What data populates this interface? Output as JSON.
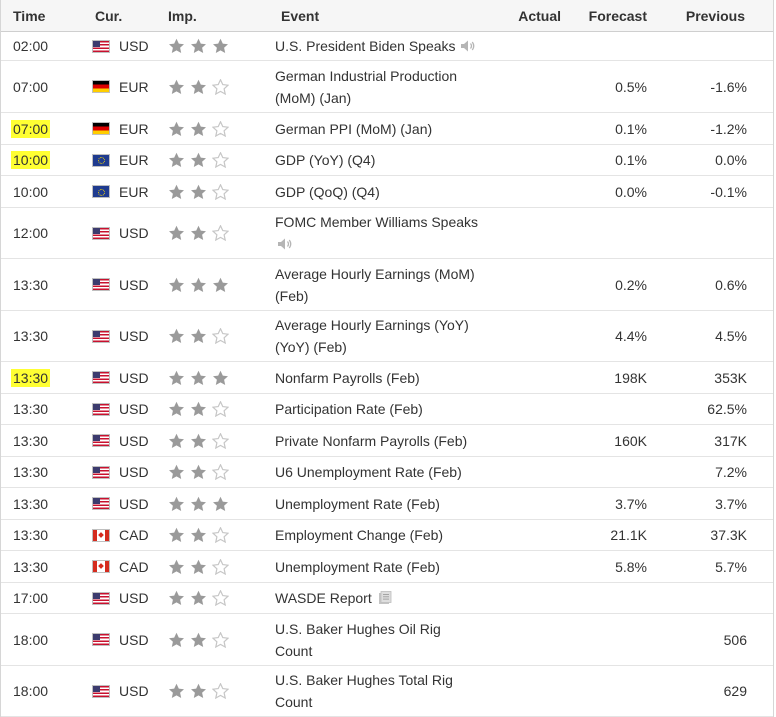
{
  "header": {
    "time": "Time",
    "currency": "Cur.",
    "importance": "Imp.",
    "event": "Event",
    "actual": "Actual",
    "forecast": "Forecast",
    "previous": "Previous"
  },
  "rows": [
    {
      "time": "02:00",
      "flag": "us",
      "currency": "USD",
      "stars": 3,
      "event_lines": [
        "U.S. President Biden Speaks"
      ],
      "icon": "sound",
      "actual": "",
      "forecast": "",
      "previous": "",
      "highlight": false
    },
    {
      "time": "07:00",
      "flag": "de",
      "currency": "EUR",
      "stars": 2,
      "event_lines": [
        "German Industrial Production",
        "(MoM) (Jan)"
      ],
      "icon": "",
      "actual": "",
      "forecast": "0.5%",
      "previous": "-1.6%",
      "highlight": false
    },
    {
      "time": "07:00",
      "flag": "de",
      "currency": "EUR",
      "stars": 2,
      "event_lines": [
        "German PPI (MoM) (Jan)"
      ],
      "icon": "",
      "actual": "",
      "forecast": "0.1%",
      "previous": "-1.2%",
      "highlight": true
    },
    {
      "time": "10:00",
      "flag": "eu",
      "currency": "EUR",
      "stars": 2,
      "event_lines": [
        "GDP (YoY) (Q4)"
      ],
      "icon": "",
      "actual": "",
      "forecast": "0.1%",
      "previous": "0.0%",
      "highlight": true
    },
    {
      "time": "10:00",
      "flag": "eu",
      "currency": "EUR",
      "stars": 2,
      "event_lines": [
        "GDP (QoQ) (Q4)"
      ],
      "icon": "",
      "actual": "",
      "forecast": "0.0%",
      "previous": "-0.1%",
      "highlight": false
    },
    {
      "time": "12:00",
      "flag": "us",
      "currency": "USD",
      "stars": 2,
      "event_lines": [
        "FOMC Member Williams Speaks"
      ],
      "icon": "sound-below",
      "actual": "",
      "forecast": "",
      "previous": "",
      "highlight": false
    },
    {
      "time": "13:30",
      "flag": "us",
      "currency": "USD",
      "stars": 3,
      "event_lines": [
        "Average Hourly Earnings (MoM)",
        "(Feb)"
      ],
      "icon": "",
      "actual": "",
      "forecast": "0.2%",
      "previous": "0.6%",
      "highlight": false
    },
    {
      "time": "13:30",
      "flag": "us",
      "currency": "USD",
      "stars": 2,
      "event_lines": [
        "Average Hourly Earnings (YoY)",
        "(YoY) (Feb)"
      ],
      "icon": "",
      "actual": "",
      "forecast": "4.4%",
      "previous": "4.5%",
      "highlight": false
    },
    {
      "time": "13:30",
      "flag": "us",
      "currency": "USD",
      "stars": 3,
      "event_lines": [
        "Nonfarm Payrolls (Feb)"
      ],
      "icon": "",
      "actual": "",
      "forecast": "198K",
      "previous": "353K",
      "highlight": true
    },
    {
      "time": "13:30",
      "flag": "us",
      "currency": "USD",
      "stars": 2,
      "event_lines": [
        "Participation Rate (Feb)"
      ],
      "icon": "",
      "actual": "",
      "forecast": "",
      "previous": "62.5%",
      "highlight": false
    },
    {
      "time": "13:30",
      "flag": "us",
      "currency": "USD",
      "stars": 2,
      "event_lines": [
        "Private Nonfarm Payrolls (Feb)"
      ],
      "icon": "",
      "actual": "",
      "forecast": "160K",
      "previous": "317K",
      "highlight": false
    },
    {
      "time": "13:30",
      "flag": "us",
      "currency": "USD",
      "stars": 2,
      "event_lines": [
        "U6 Unemployment Rate (Feb)"
      ],
      "icon": "",
      "actual": "",
      "forecast": "",
      "previous": "7.2%",
      "highlight": false
    },
    {
      "time": "13:30",
      "flag": "us",
      "currency": "USD",
      "stars": 3,
      "event_lines": [
        "Unemployment Rate (Feb)"
      ],
      "icon": "",
      "actual": "",
      "forecast": "3.7%",
      "previous": "3.7%",
      "highlight": false
    },
    {
      "time": "13:30",
      "flag": "ca",
      "currency": "CAD",
      "stars": 2,
      "event_lines": [
        "Employment Change (Feb)"
      ],
      "icon": "",
      "actual": "",
      "forecast": "21.1K",
      "previous": "37.3K",
      "highlight": false
    },
    {
      "time": "13:30",
      "flag": "ca",
      "currency": "CAD",
      "stars": 2,
      "event_lines": [
        "Unemployment Rate (Feb)"
      ],
      "icon": "",
      "actual": "",
      "forecast": "5.8%",
      "previous": "5.7%",
      "highlight": false
    },
    {
      "time": "17:00",
      "flag": "us",
      "currency": "USD",
      "stars": 2,
      "event_lines": [
        "WASDE Report"
      ],
      "icon": "doc",
      "actual": "",
      "forecast": "",
      "previous": "",
      "highlight": false
    },
    {
      "time": "18:00",
      "flag": "us",
      "currency": "USD",
      "stars": 2,
      "event_lines": [
        "U.S. Baker Hughes Oil Rig",
        "Count"
      ],
      "icon": "",
      "actual": "",
      "forecast": "",
      "previous": "506",
      "highlight": false
    },
    {
      "time": "18:00",
      "flag": "us",
      "currency": "USD",
      "stars": 2,
      "event_lines": [
        "U.S. Baker Hughes Total Rig",
        "Count"
      ],
      "icon": "",
      "actual": "",
      "forecast": "",
      "previous": "629",
      "highlight": false
    }
  ],
  "colors": {
    "star_filled": "#9a9a9a",
    "star_empty": "#c6c6c6",
    "highlight": "#ffff33",
    "border": "#e4e4e4"
  }
}
